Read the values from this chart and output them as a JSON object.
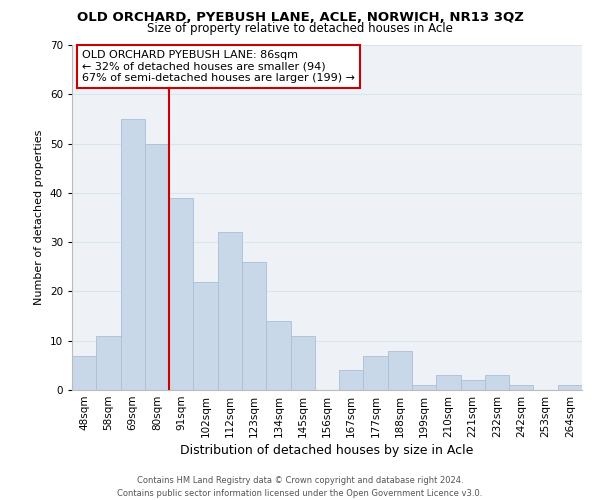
{
  "title": "OLD ORCHARD, PYEBUSH LANE, ACLE, NORWICH, NR13 3QZ",
  "subtitle": "Size of property relative to detached houses in Acle",
  "xlabel": "Distribution of detached houses by size in Acle",
  "ylabel": "Number of detached properties",
  "bar_labels": [
    "48sqm",
    "58sqm",
    "69sqm",
    "80sqm",
    "91sqm",
    "102sqm",
    "112sqm",
    "123sqm",
    "134sqm",
    "145sqm",
    "156sqm",
    "167sqm",
    "177sqm",
    "188sqm",
    "199sqm",
    "210sqm",
    "221sqm",
    "232sqm",
    "242sqm",
    "253sqm",
    "264sqm"
  ],
  "bar_values": [
    7,
    11,
    55,
    50,
    39,
    22,
    32,
    26,
    14,
    11,
    0,
    4,
    7,
    8,
    1,
    3,
    2,
    3,
    1,
    0,
    1
  ],
  "bar_color": "#c8d8e8",
  "bar_edge_color": "#a8c0d8",
  "vline_x_index": 3.5,
  "vline_color": "#cc0000",
  "ylim": [
    0,
    70
  ],
  "yticks": [
    0,
    10,
    20,
    30,
    40,
    50,
    60,
    70
  ],
  "annotation_box_text": "OLD ORCHARD PYEBUSH LANE: 86sqm\n← 32% of detached houses are smaller (94)\n67% of semi-detached houses are larger (199) →",
  "footer_line1": "Contains HM Land Registry data © Crown copyright and database right 2024.",
  "footer_line2": "Contains public sector information licensed under the Open Government Licence v3.0.",
  "grid_color": "#d8e4ee",
  "bg_color": "#eef2f7",
  "title_fontsize": 9.5,
  "subtitle_fontsize": 8.5,
  "ylabel_fontsize": 8,
  "xlabel_fontsize": 9,
  "tick_fontsize": 7.5,
  "footer_fontsize": 6.0,
  "ann_fontsize": 8.0
}
